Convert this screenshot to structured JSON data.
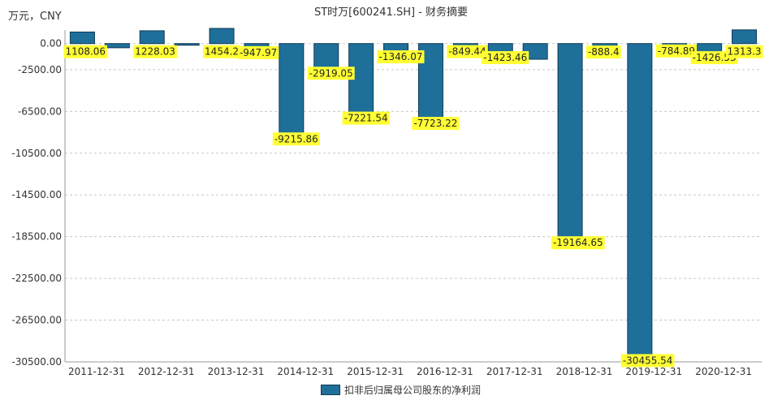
{
  "unit_label": "万元，CNY",
  "title": "ST时万[600241.SH] - 财务摘要",
  "legend": {
    "label": "扣非后归属母公司股东的净利润",
    "color": "#1f6f9b"
  },
  "chart_data": {
    "type": "bar",
    "title": "ST时万[600241.SH] - 财务摘要",
    "xlabel": "",
    "ylabel": "万元，CNY",
    "ylim": [
      -30500,
      1300
    ],
    "y_ticks": [
      0,
      -2500,
      -6500,
      -10500,
      -14500,
      -18500,
      -22500,
      -26500,
      -30500
    ],
    "y_tick_labels": [
      "0.00",
      "-2500.00",
      "-6500.00",
      "-10500.00",
      "-14500.00",
      "-18500.00",
      "-22500.00",
      "-26500.00",
      "-30500.00"
    ],
    "x_tick_labels": [
      "2011-12-31",
      "2012-12-31",
      "2013-12-31",
      "2014-12-31",
      "2015-12-31",
      "2016-12-31",
      "2017-12-31",
      "2018-12-31",
      "2019-12-31",
      "2020-12-31"
    ],
    "grid": true,
    "legend_position": "bottom",
    "series": [
      {
        "name": "扣非后归属母公司股东的净利润",
        "color": "#1f6f9b",
        "values": [
          1108.06,
          -400,
          1228.03,
          -50,
          1454.2,
          -947.97,
          -9215.86,
          -2919.05,
          -7221.54,
          -1346.07,
          -7723.22,
          -849.44,
          -1423.46,
          -1500,
          -19164.65,
          -888.4,
          -30455.54,
          -784.89,
          -1426.53,
          1313.3
        ],
        "labels": [
          "1108.06",
          null,
          "1228.03",
          null,
          "1454.2",
          "-947.97",
          "-9215.86",
          "-2919.05",
          "-7221.54",
          "-1346.07",
          "-7723.22",
          "-849.44",
          "-1423.46",
          null,
          "-19164.65",
          "-888.4",
          "-30455.54",
          "-784.89",
          "-1426.53",
          "1313.3"
        ]
      }
    ]
  }
}
